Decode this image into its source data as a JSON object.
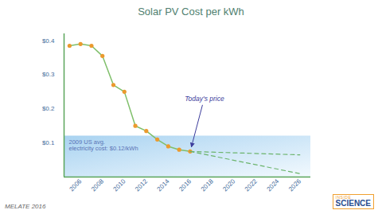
{
  "chart_data": {
    "type": "line",
    "title": "Solar PV Cost per kWh",
    "xlim": [
      2004.5,
      2027
    ],
    "xticks": [
      2006,
      2008,
      2010,
      2012,
      2014,
      2016,
      2018,
      2020,
      2022,
      2024,
      2026
    ],
    "ylim": [
      0,
      0.42
    ],
    "yticks": [
      {
        "value": 0.1,
        "label": "$0.1"
      },
      {
        "value": 0.2,
        "label": "$0.2"
      },
      {
        "value": 0.3,
        "label": "$0.3"
      },
      {
        "value": 0.4,
        "label": "$0.4"
      }
    ],
    "grid": false,
    "series": [
      {
        "x": [
          2005,
          2006,
          2007,
          2008,
          2009,
          2010,
          2011,
          2012,
          2013,
          2014,
          2015,
          2016
        ],
        "values": [
          0.385,
          0.39,
          0.385,
          0.355,
          0.27,
          0.25,
          0.15,
          0.135,
          0.11,
          0.09,
          0.08,
          0.075
        ],
        "color": "#eb9a2e",
        "marker": "circle",
        "line_style": "solid"
      },
      {
        "x": [
          2016,
          2026
        ],
        "values": [
          0.075,
          0.065
        ],
        "color": "#6cb46c",
        "marker": "none",
        "line_style": "dashed"
      },
      {
        "x": [
          2016,
          2026
        ],
        "values": [
          0.075,
          0.01
        ],
        "color": "#6cb46c",
        "marker": "none",
        "line_style": "dashed"
      }
    ],
    "reference_band": {
      "value": 0.12,
      "text": [
        "2009 US avg.",
        "electricity cost: $0.12/kWh"
      ]
    },
    "annotations": [
      {
        "text": "Today's price",
        "x": 2016,
        "y": 0.075
      }
    ],
    "credit": "MELATE 2016",
    "logo": [
      "INSIDE",
      "SCIENCE"
    ]
  }
}
